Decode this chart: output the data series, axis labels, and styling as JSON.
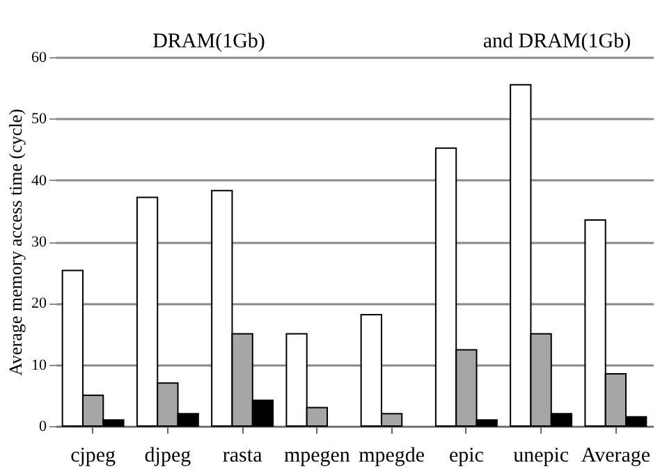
{
  "chart_data": {
    "type": "bar",
    "categories": [
      "cjpeg",
      "djpeg",
      "rasta",
      "mpegen",
      "mpegde",
      "epic",
      "unepic",
      "Average"
    ],
    "series": [
      {
        "color": "#ffffff",
        "values": [
          25.3,
          37.2,
          38.3,
          15,
          18.1,
          45.2,
          55.5,
          33.5
        ]
      },
      {
        "color": "#a6a6a6",
        "values": [
          5,
          7,
          15,
          3,
          2,
          12.4,
          15,
          8.5
        ]
      },
      {
        "color": "#000000",
        "values": [
          1,
          2,
          4.2,
          null,
          null,
          1,
          2,
          1.5
        ]
      }
    ],
    "ylabel": "Average memory access time (cycle)",
    "ylim": [
      0,
      60
    ],
    "yticks": [
      0,
      10,
      20,
      30,
      40,
      50,
      60
    ],
    "annotations": [
      "DRAM(1Gb)",
      "and DRAM(1Gb)"
    ],
    "grid": "y"
  }
}
